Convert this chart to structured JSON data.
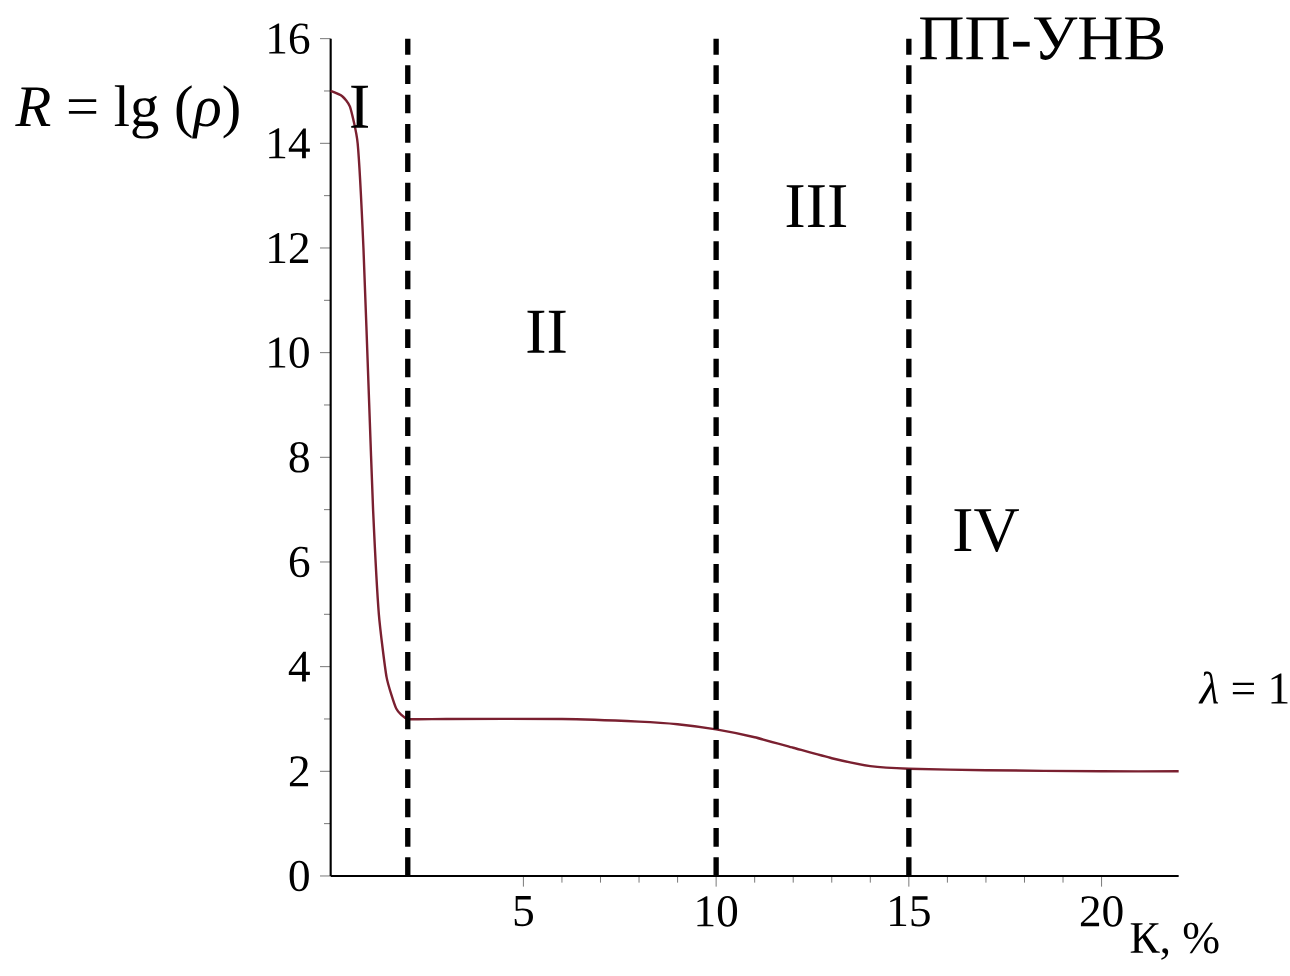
{
  "chart_data": {
    "type": "line",
    "xlabel": "К, %",
    "ylabel": "*R* = lg (*ρ*)",
    "x": [
      0,
      0.3,
      0.5,
      0.7,
      0.85,
      1.0,
      1.1,
      1.25,
      1.45,
      1.7,
      2,
      3,
      6,
      8,
      9,
      10,
      11,
      12,
      13,
      14,
      15,
      17,
      20,
      22
    ],
    "series": [
      {
        "color": "#7a2030",
        "values": [
          15,
          14.9,
          14.7,
          14.0,
          12,
          9,
          7,
          5,
          3.8,
          3.2,
          3.0,
          3.0,
          3.0,
          2.95,
          2.9,
          2.8,
          2.65,
          2.45,
          2.25,
          2.1,
          2.05,
          2.02,
          2.0,
          2.0
        ]
      }
    ],
    "xlim": [
      0,
      22
    ],
    "ylim": [
      0,
      16
    ],
    "xticks": [
      5,
      10,
      15,
      20
    ],
    "yticks": [
      0,
      2,
      4,
      6,
      8,
      10,
      12,
      14,
      16
    ],
    "ref_lines": [
      {
        "axis": "x",
        "value": 2,
        "color": "#000000",
        "line_style": "dashed"
      },
      {
        "axis": "x",
        "value": 10,
        "color": "#000000",
        "line_style": "dashed"
      },
      {
        "axis": "x",
        "value": 15,
        "color": "#000000",
        "line_style": "dashed"
      }
    ],
    "annotations": [
      "I",
      "II",
      "III",
      "IV",
      "ПП-УНВ",
      "*λ* = 1"
    ],
    "line_style": "solid"
  }
}
